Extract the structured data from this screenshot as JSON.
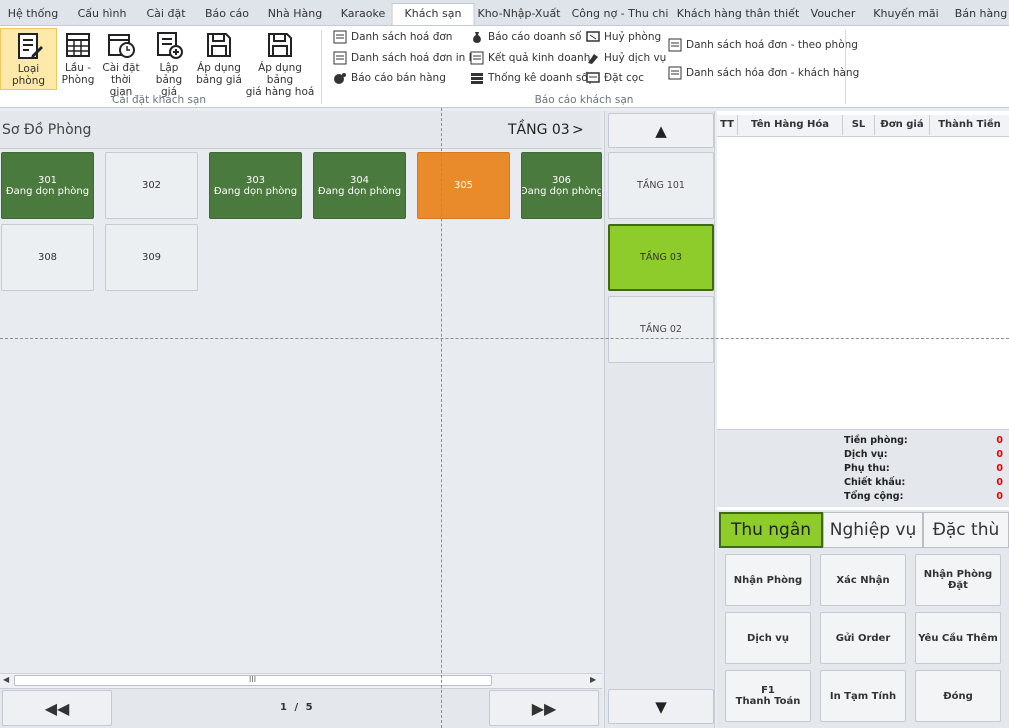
{
  "tabs": [
    "Hệ thống",
    "Cấu hình",
    "Cài đặt",
    "Báo cáo",
    "Nhà Hàng",
    "Karaoke",
    "Khách sạn",
    "Kho-Nhập-Xuất",
    "Công nợ - Thu chi",
    "Khách hàng thân thiết",
    "Voucher",
    "Khuyến mãi",
    "Bán hàng"
  ],
  "active_tab": "Khách sạn",
  "ribbon": {
    "buttons": [
      {
        "label": "Loại phòng",
        "icon": "edit-doc-icon"
      },
      {
        "label": "Lầu -\nPhòng",
        "icon": "building-grid-icon"
      },
      {
        "label": "Cài đặt\nthời gian",
        "icon": "calendar-clock-icon"
      },
      {
        "label": "Lập bảng\ngiá",
        "icon": "list-add-icon"
      },
      {
        "label": "Áp dụng\nbảng giá",
        "icon": "save-icon"
      },
      {
        "label": "Áp dụng bảng\ngiá hàng hoá",
        "icon": "save-icon"
      }
    ],
    "group1_label": "Cài đặt khách sạn",
    "reports": [
      {
        "label": "Danh sách hoá đơn",
        "icon": "list-icon"
      },
      {
        "label": "Danh sách hoá đơn in lại",
        "icon": "list-icon"
      },
      {
        "label": "Báo cáo bán hàng",
        "icon": "coin-icon"
      },
      {
        "label": "Báo cáo doanh số",
        "icon": "money-bag-icon"
      },
      {
        "label": "Kết quả kinh doanh",
        "icon": "list-icon"
      },
      {
        "label": "Thống kê doanh số",
        "icon": "stack-icon"
      },
      {
        "label": "Huỷ phòng",
        "icon": "cancel-icon"
      },
      {
        "label": "Huỷ dịch vụ",
        "icon": "cancel-service-icon"
      },
      {
        "label": "Đặt cọc",
        "icon": "deposit-icon"
      },
      {
        "label": "Danh sách hoá đơn - theo phòng",
        "icon": "list-icon"
      },
      {
        "label": "Danh sách hóa đơn - khách hàng",
        "icon": "list-icon"
      }
    ],
    "group2_label": "Báo cáo khách sạn"
  },
  "room_map": {
    "title": "Sơ Đồ Phòng",
    "floor_label": "TẦNG 03",
    "next_symbol": ">",
    "rooms": [
      {
        "number": "301",
        "status": "Đang dọn phòng",
        "color": "#4a7a3d"
      },
      {
        "number": "302",
        "status": "",
        "color": "#eceff2"
      },
      {
        "number": "303",
        "status": "Đang dọn phòng",
        "color": "#4a7a3d"
      },
      {
        "number": "304",
        "status": "Đang dọn phòng",
        "color": "#4a7a3d"
      },
      {
        "number": "305",
        "status": "",
        "color": "#e98a2b"
      },
      {
        "number": "306",
        "status": "Đang dọn phòng",
        "color": "#4a7a3d"
      },
      {
        "number": "308",
        "status": "",
        "color": "#eceff2"
      },
      {
        "number": "309",
        "status": "",
        "color": "#eceff2"
      }
    ],
    "scroll_grip": "III",
    "pager": {
      "first": "◀◀",
      "last": "▶▶",
      "text": "1 / 5"
    }
  },
  "floors": {
    "up": "▲",
    "down": "▼",
    "items": [
      {
        "label": "TẦNG 101",
        "active": false
      },
      {
        "label": "TẦNG 03",
        "active": true
      },
      {
        "label": "TẦNG 02",
        "active": false
      }
    ]
  },
  "order": {
    "columns": [
      "TT",
      "Tên Hàng Hóa",
      "SL",
      "Đơn giá",
      "Thành Tiền"
    ],
    "summary": [
      {
        "label": "Tiền phòng:",
        "value": "0"
      },
      {
        "label": "Dịch vụ:",
        "value": "0"
      },
      {
        "label": "Phụ thu:",
        "value": "0"
      },
      {
        "label": "Chiết khấu:",
        "value": "0"
      },
      {
        "label": "Tổng cộng:",
        "value": "0"
      }
    ],
    "tabs": [
      "Thu ngân",
      "Nghiệp vụ",
      "Đặc thù"
    ],
    "actions": [
      "Nhận Phòng",
      "Xác Nhận",
      "Nhận Phòng\nĐặt",
      "Dịch vụ",
      "Gửi Order",
      "Yêu Cầu Thêm",
      "F1\nThanh Toán",
      "In Tạm Tính",
      "Đóng"
    ]
  },
  "colors": {
    "accent_green": "#8dcc2a",
    "room_green": "#4a7a3d",
    "room_orange": "#e98a2b",
    "zero_red": "#e00000"
  }
}
